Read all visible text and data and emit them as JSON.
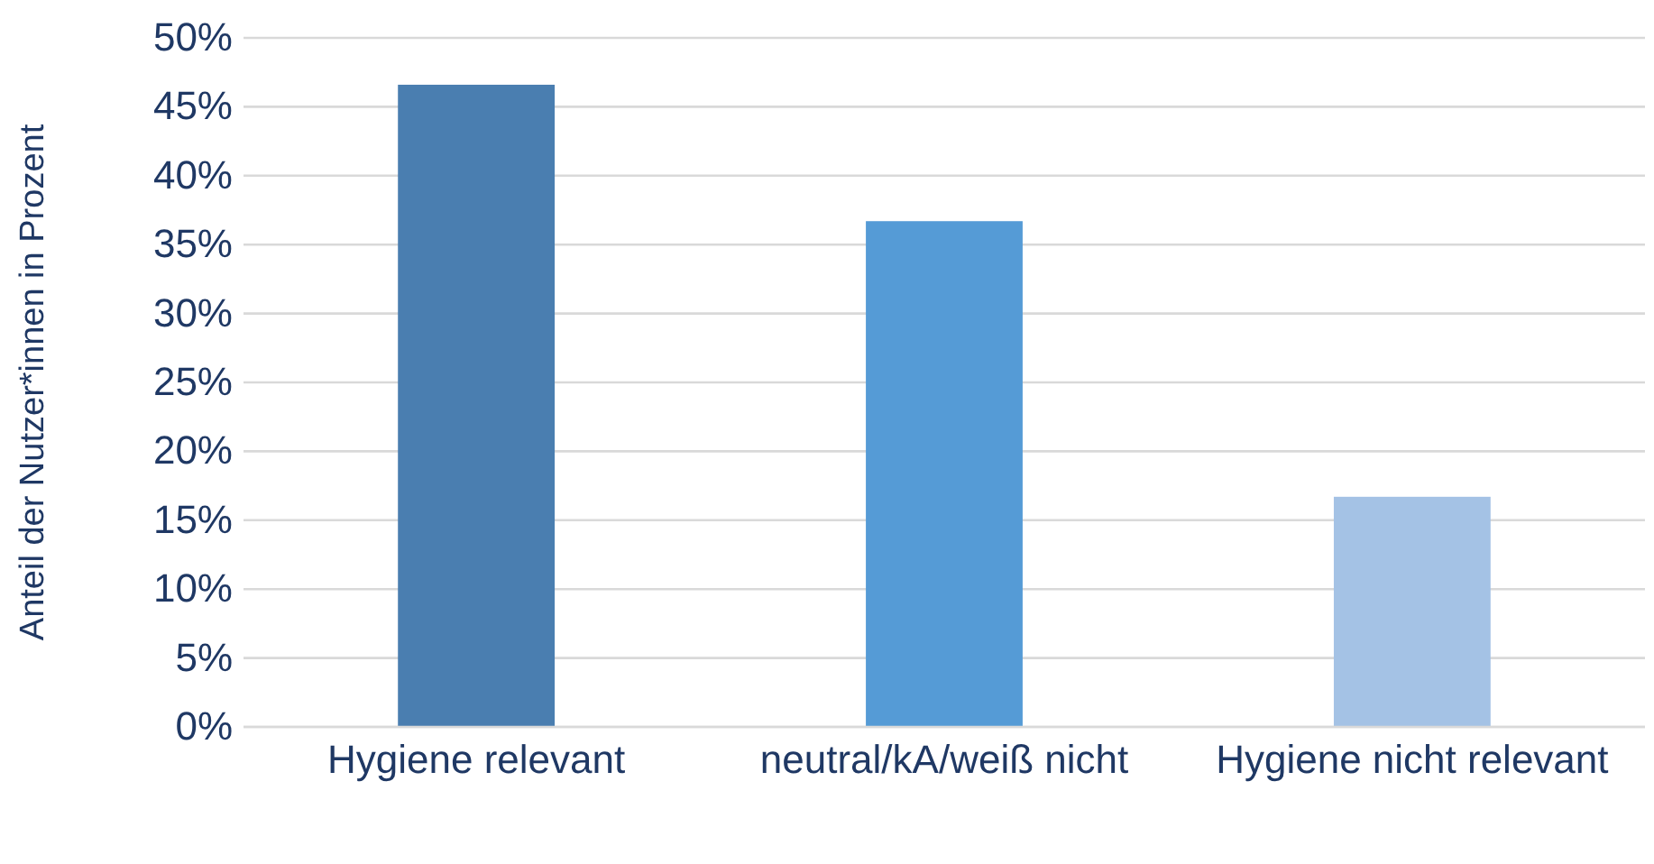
{
  "chart_data": {
    "type": "bar",
    "ylabel": "Anteil der Nutzer*innen in Prozent",
    "categories": [
      "Hygiene relevant",
      "neutral/kA/weiß nicht",
      "Hygiene nicht relevant"
    ],
    "values": [
      46.6,
      36.7,
      16.7
    ],
    "colors": [
      "#4a7eb0",
      "#559bd6",
      "#a4c2e5"
    ],
    "ylim": [
      0,
      50
    ],
    "yticks": [
      {
        "value": 0,
        "label": "0%"
      },
      {
        "value": 5,
        "label": "5%"
      },
      {
        "value": 10,
        "label": "10%"
      },
      {
        "value": 15,
        "label": "15%"
      },
      {
        "value": 20,
        "label": "20%"
      },
      {
        "value": 25,
        "label": "25%"
      },
      {
        "value": 30,
        "label": "30%"
      },
      {
        "value": 35,
        "label": "35%"
      },
      {
        "value": 40,
        "label": "40%"
      },
      {
        "value": 45,
        "label": "45%"
      },
      {
        "value": 50,
        "label": "50%"
      }
    ],
    "grid": "y"
  }
}
